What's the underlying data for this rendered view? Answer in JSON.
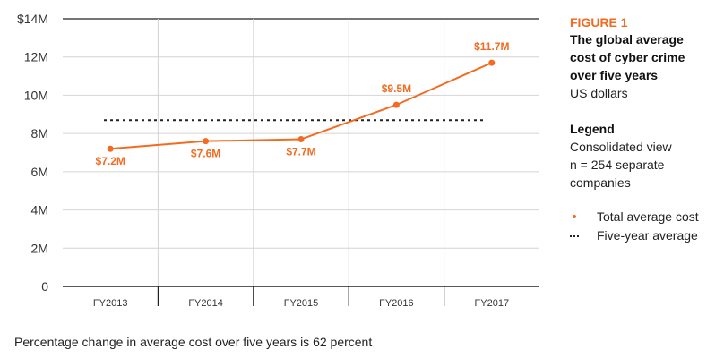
{
  "chart_data": {
    "type": "line",
    "categories": [
      "FY2013",
      "FY2014",
      "FY2015",
      "FY2016",
      "FY2017"
    ],
    "y_ticks": [
      "0",
      "2M",
      "4M",
      "6M",
      "8M",
      "10M",
      "12M",
      "$14M"
    ],
    "ylim": [
      0,
      14
    ],
    "series": [
      {
        "name": "Total average cost",
        "values": [
          7.2,
          7.6,
          7.7,
          9.5,
          11.7
        ],
        "labels": [
          "$7.2M",
          "$7.6M",
          "$7.7M",
          "$9.5M",
          "$11.7M"
        ],
        "color": "#f26b21"
      }
    ],
    "reference_line": {
      "name": "Five-year average",
      "value": 8.7,
      "style": "dotted",
      "color": "#222222"
    },
    "grid": true,
    "legend_position": "right"
  },
  "sidebar": {
    "figure_label": "FIGURE 1",
    "title_lines": [
      "The global average",
      "cost of cyber crime",
      "over five years"
    ],
    "subtitle": "US dollars",
    "legend_heading": "Legend",
    "legend_desc": [
      "Consolidated view",
      "n = 254 separate",
      "companies"
    ],
    "legend_items": [
      "Total average cost",
      "Five-year average"
    ]
  },
  "footnote": "Percentage change in average cost over five years is 62 percent"
}
